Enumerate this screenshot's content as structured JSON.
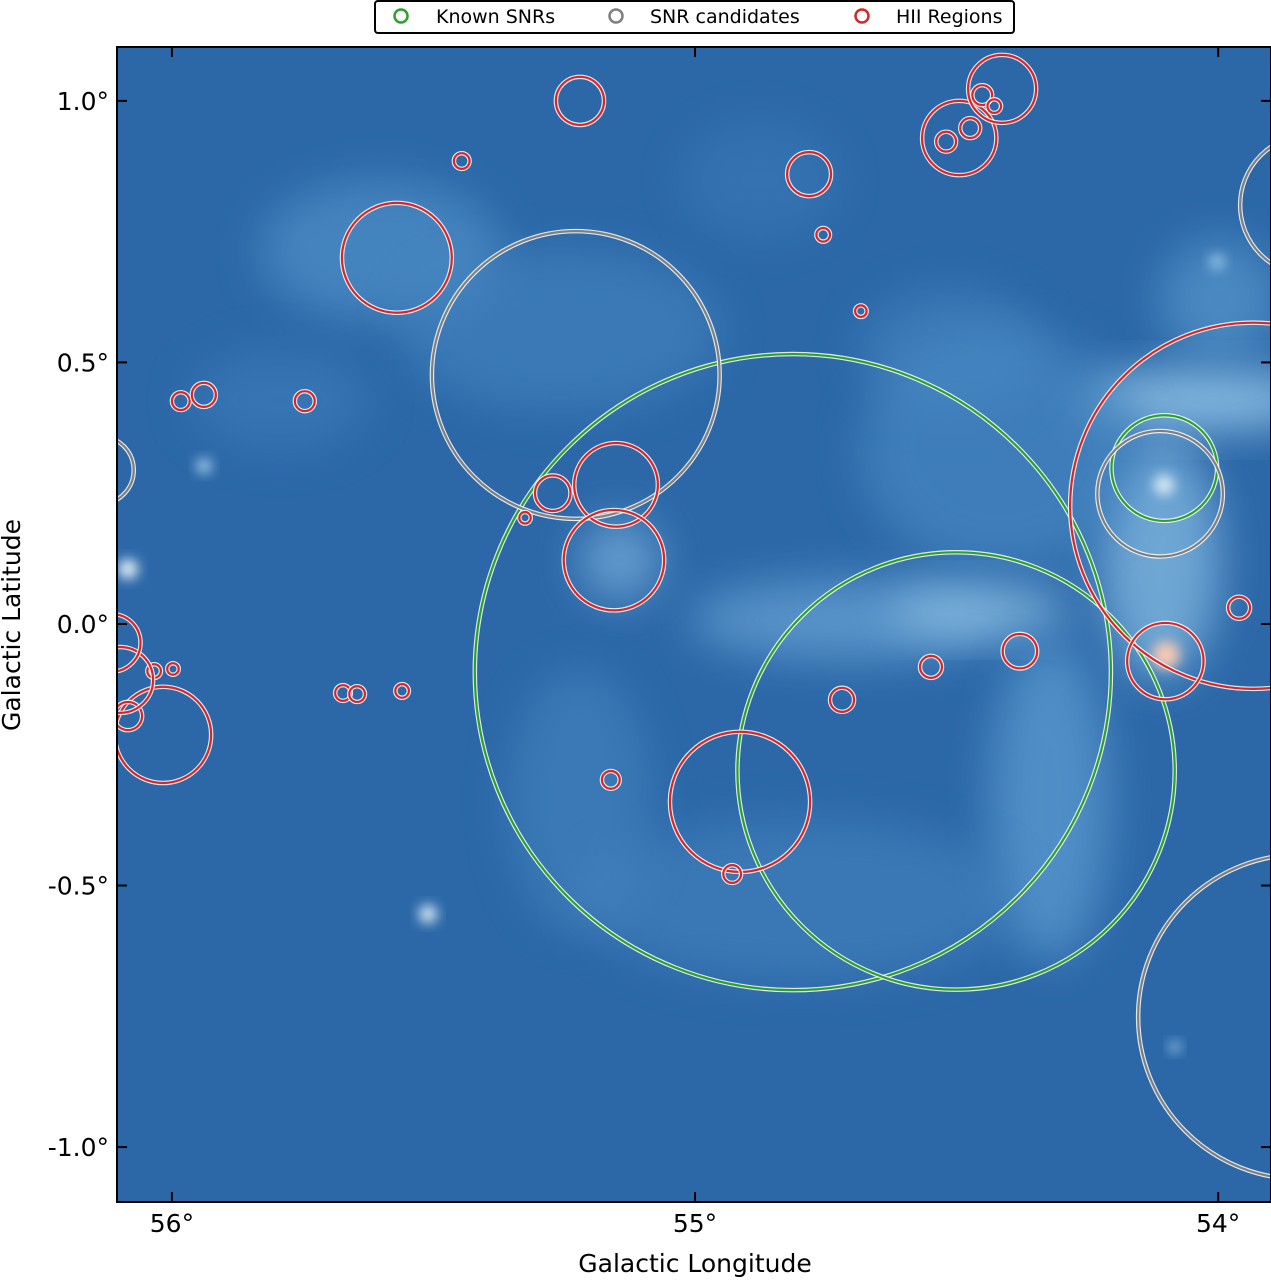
{
  "chart_data": {
    "type": "scatter",
    "xlabel": "Galactic Longitude",
    "ylabel": "Galactic Latitude",
    "xlim": [
      56.105,
      53.899
    ],
    "ylim": [
      -1.105,
      1.103
    ],
    "x_ticks": [
      {
        "value": 56,
        "label": "56°"
      },
      {
        "value": 55,
        "label": "55°"
      },
      {
        "value": 54,
        "label": "54°"
      }
    ],
    "y_ticks": [
      {
        "value": 1.0,
        "label": "1.0°"
      },
      {
        "value": 0.5,
        "label": "0.5°"
      },
      {
        "value": 0.0,
        "label": "0.0°"
      },
      {
        "value": -0.5,
        "label": "-0.5°"
      },
      {
        "value": -1.0,
        "label": "-1.0°"
      }
    ],
    "grid": false,
    "legend_placement": "top-center, above plot",
    "background": "blue-colormap sky image",
    "series": [
      {
        "name": "Known SNRs",
        "color": "#2ca02c",
        "marker": "circle-outline",
        "circles": [
          {
            "l": 54.813,
            "b": -0.092,
            "r": 0.608
          },
          {
            "l": 54.501,
            "b": -0.281,
            "r": 0.418
          },
          {
            "l": 54.103,
            "b": 0.298,
            "r": 0.101
          }
        ]
      },
      {
        "name": "SNR candidates",
        "color": "#7f7f7f",
        "marker": "circle-outline",
        "circles": [
          {
            "l": 55.228,
            "b": 0.476,
            "r": 0.275
          },
          {
            "l": 54.111,
            "b": 0.249,
            "r": 0.12
          },
          {
            "l": 56.138,
            "b": 0.294,
            "r": 0.065
          },
          {
            "l": 53.824,
            "b": 0.801,
            "r": 0.134
          },
          {
            "l": 53.843,
            "b": -0.751,
            "r": 0.31
          }
        ]
      },
      {
        "name": "HII Regions",
        "color": "#d62728",
        "marker": "circle-outline",
        "circles": [
          {
            "l": 55.22,
            "b": 1.0,
            "r": 0.046
          },
          {
            "l": 55.446,
            "b": 0.885,
            "r": 0.015
          },
          {
            "l": 55.57,
            "b": 0.7,
            "r": 0.105
          },
          {
            "l": 54.782,
            "b": 0.86,
            "r": 0.042
          },
          {
            "l": 54.755,
            "b": 0.744,
            "r": 0.013
          },
          {
            "l": 54.683,
            "b": 0.598,
            "r": 0.011
          },
          {
            "l": 54.495,
            "b": 0.929,
            "r": 0.071
          },
          {
            "l": 54.52,
            "b": 0.922,
            "r": 0.019
          },
          {
            "l": 54.474,
            "b": 0.948,
            "r": 0.019
          },
          {
            "l": 54.451,
            "b": 1.011,
            "r": 0.019
          },
          {
            "l": 54.428,
            "b": 0.99,
            "r": 0.013
          },
          {
            "l": 54.413,
            "b": 1.023,
            "r": 0.065
          },
          {
            "l": 53.933,
            "b": 0.226,
            "r": 0.35
          },
          {
            "l": 55.983,
            "b": 0.426,
            "r": 0.017
          },
          {
            "l": 55.939,
            "b": 0.438,
            "r": 0.023
          },
          {
            "l": 55.746,
            "b": 0.426,
            "r": 0.019
          },
          {
            "l": 55.272,
            "b": 0.25,
            "r": 0.034
          },
          {
            "l": 55.151,
            "b": 0.266,
            "r": 0.08
          },
          {
            "l": 55.325,
            "b": 0.203,
            "r": 0.011
          },
          {
            "l": 55.155,
            "b": 0.122,
            "r": 0.096
          },
          {
            "l": 53.96,
            "b": 0.031,
            "r": 0.021
          },
          {
            "l": 54.379,
            "b": -0.052,
            "r": 0.033
          },
          {
            "l": 54.101,
            "b": -0.071,
            "r": 0.073
          },
          {
            "l": 54.549,
            "b": -0.082,
            "r": 0.021
          },
          {
            "l": 54.719,
            "b": -0.145,
            "r": 0.023
          },
          {
            "l": 55.161,
            "b": -0.298,
            "r": 0.017
          },
          {
            "l": 54.914,
            "b": -0.34,
            "r": 0.134
          },
          {
            "l": 54.929,
            "b": -0.478,
            "r": 0.017
          },
          {
            "l": 55.673,
            "b": -0.132,
            "r": 0.015
          },
          {
            "l": 55.646,
            "b": -0.134,
            "r": 0.015
          },
          {
            "l": 55.56,
            "b": -0.128,
            "r": 0.013
          },
          {
            "l": 55.998,
            "b": -0.086,
            "r": 0.011
          },
          {
            "l": 56.034,
            "b": -0.09,
            "r": 0.013
          },
          {
            "l": 56.017,
            "b": -0.212,
            "r": 0.092
          },
          {
            "l": 56.084,
            "b": -0.176,
            "r": 0.027
          },
          {
            "l": 56.099,
            "b": -0.107,
            "r": 0.063
          },
          {
            "l": 56.115,
            "b": -0.036,
            "r": 0.055
          }
        ]
      }
    ]
  }
}
